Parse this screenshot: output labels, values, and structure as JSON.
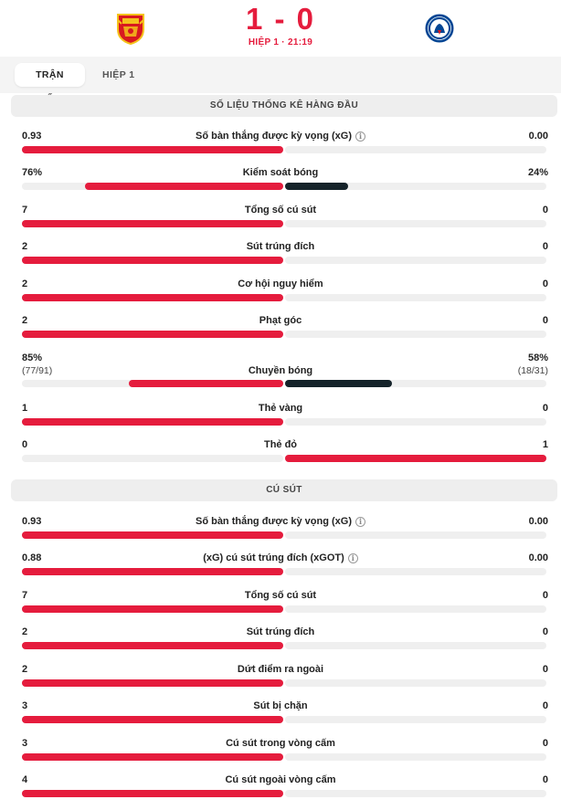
{
  "match": {
    "score": "1 - 0",
    "period": "HIỆP 1 · 21:19",
    "home_crest": "manchester-united-crest",
    "away_crest": "chelsea-crest"
  },
  "tabs": [
    {
      "label": "TRẬN ĐẤU",
      "active": true
    },
    {
      "label": "HIỆP 1",
      "active": false
    }
  ],
  "colors": {
    "home": "#e51c3d",
    "away": "#15232a",
    "track": "#efefef",
    "accent": "#e51c3d"
  },
  "sections": [
    {
      "title": "SỐ LIỆU THỐNG KÊ HÀNG ĐẦU",
      "stats": [
        {
          "label": "Số bàn thắng được kỳ vọng (xG)",
          "info": true,
          "home": "0.93",
          "away": "0.00",
          "home_share": 1.0,
          "away_share": 0.0
        },
        {
          "label": "Kiểm soát bóng",
          "home": "76%",
          "away": "24%",
          "home_share": 0.76,
          "away_share": 0.24,
          "two_color": true
        },
        {
          "label": "Tổng số cú sút",
          "home": "7",
          "away": "0",
          "home_share": 1.0,
          "away_share": 0.0
        },
        {
          "label": "Sút trúng đích",
          "home": "2",
          "away": "0",
          "home_share": 1.0,
          "away_share": 0.0
        },
        {
          "label": "Cơ hội nguy hiểm",
          "home": "2",
          "away": "0",
          "home_share": 1.0,
          "away_share": 0.0
        },
        {
          "label": "Phạt góc",
          "home": "2",
          "away": "0",
          "home_share": 1.0,
          "away_share": 0.0
        },
        {
          "label": "Chuyền bóng",
          "home": "85%",
          "away": "58%",
          "home_sub": "(77/91)",
          "away_sub": "(18/31)",
          "home_share": 0.59,
          "away_share": 0.41,
          "two_color": true
        },
        {
          "label": "Thẻ vàng",
          "home": "1",
          "away": "0",
          "home_share": 1.0,
          "away_share": 0.0
        },
        {
          "label": "Thẻ đỏ",
          "home": "0",
          "away": "1",
          "home_share": 0.0,
          "away_share": 1.0
        }
      ]
    },
    {
      "title": "CÚ SÚT",
      "stats": [
        {
          "label": "Số bàn thắng được kỳ vọng (xG)",
          "info": true,
          "home": "0.93",
          "away": "0.00",
          "home_share": 1.0,
          "away_share": 0.0
        },
        {
          "label": "(xG) cú sút trúng đích (xGOT)",
          "info": true,
          "home": "0.88",
          "away": "0.00",
          "home_share": 1.0,
          "away_share": 0.0
        },
        {
          "label": "Tổng số cú sút",
          "home": "7",
          "away": "0",
          "home_share": 1.0,
          "away_share": 0.0
        },
        {
          "label": "Sút trúng đích",
          "home": "2",
          "away": "0",
          "home_share": 1.0,
          "away_share": 0.0
        },
        {
          "label": "Dứt điểm ra ngoài",
          "home": "2",
          "away": "0",
          "home_share": 1.0,
          "away_share": 0.0
        },
        {
          "label": "Sút bị chặn",
          "home": "3",
          "away": "0",
          "home_share": 1.0,
          "away_share": 0.0
        },
        {
          "label": "Cú sút trong vòng cấm",
          "home": "3",
          "away": "0",
          "home_share": 1.0,
          "away_share": 0.0
        },
        {
          "label": "Cú sút ngoài vòng cấm",
          "home": "4",
          "away": "0",
          "home_share": 1.0,
          "away_share": 0.0
        }
      ]
    }
  ]
}
